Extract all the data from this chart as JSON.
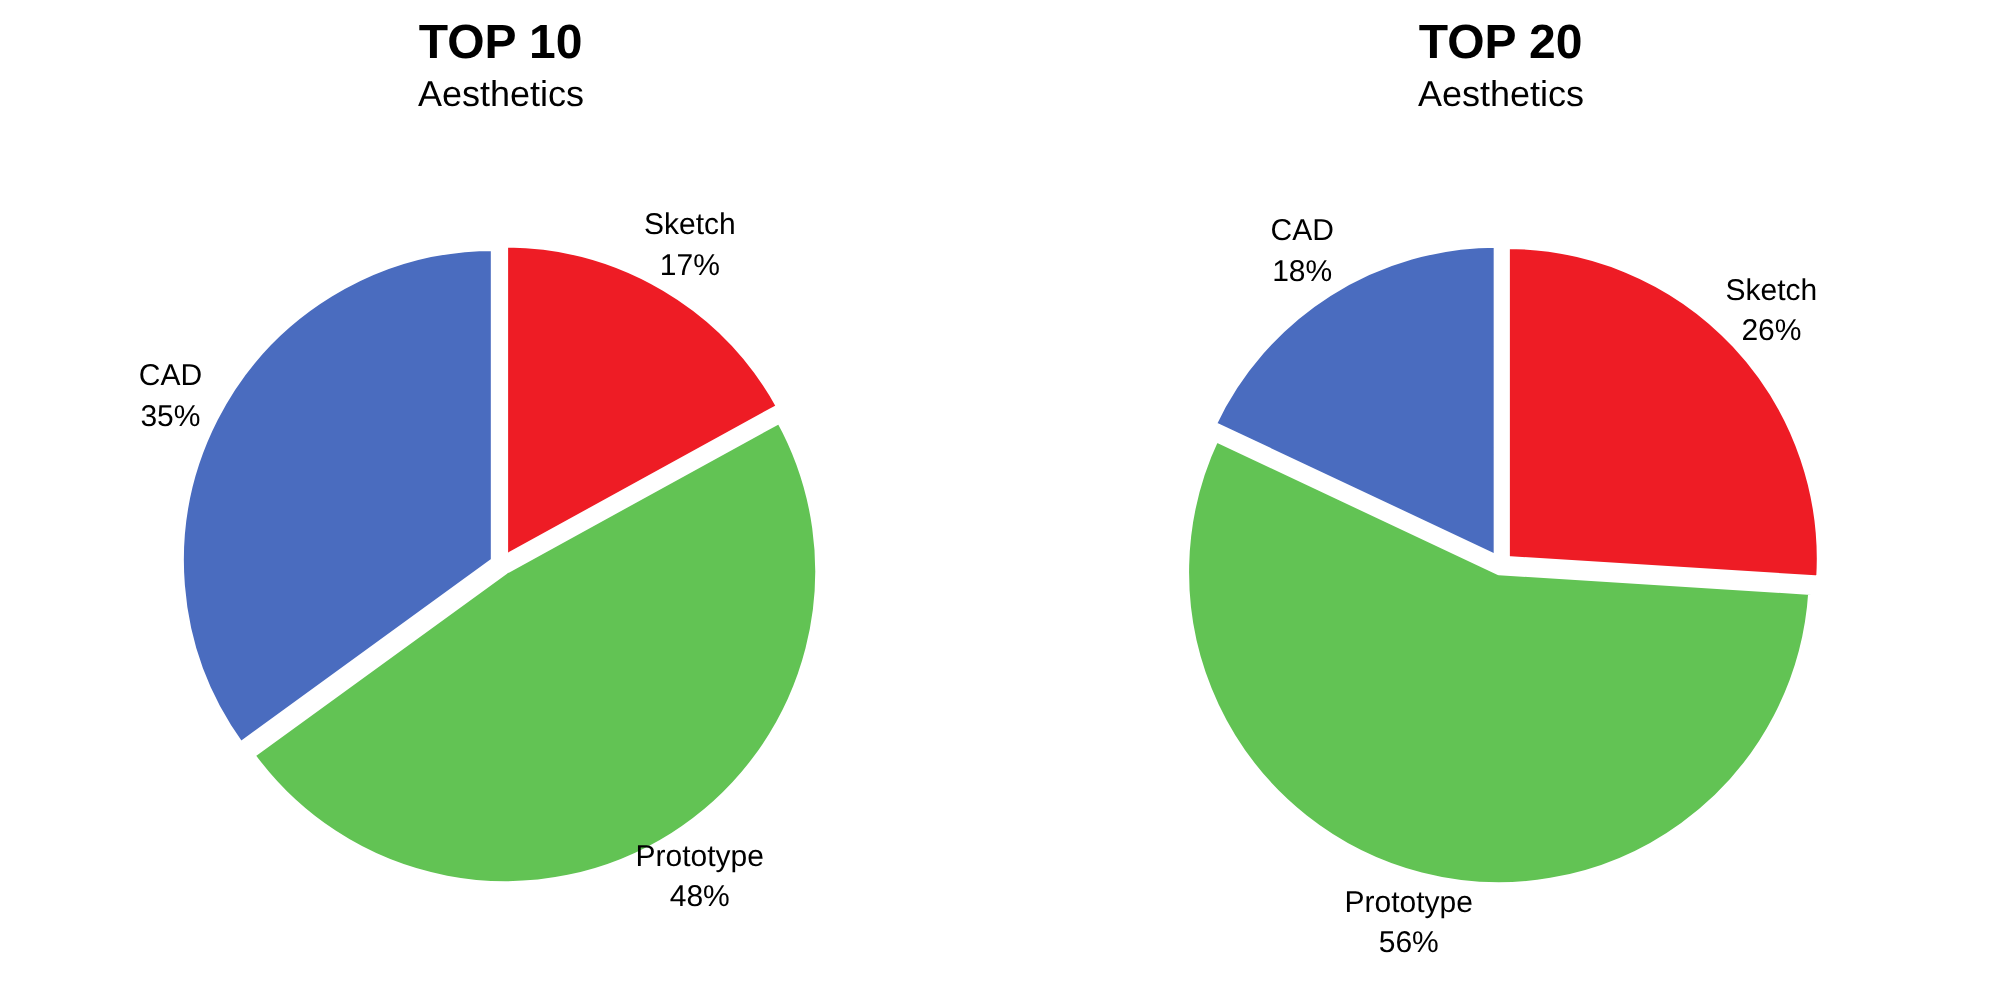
{
  "chart_data": [
    {
      "type": "pie",
      "title": "TOP 10",
      "subtitle": "Aesthetics",
      "categories": [
        "Sketch",
        "Prototype",
        "CAD"
      ],
      "values": [
        17,
        48,
        35
      ],
      "colors": [
        "#ee1c25",
        "#62c354",
        "#4a6cbf"
      ],
      "value_labels": [
        "17%",
        "48%",
        "35%"
      ]
    },
    {
      "type": "pie",
      "title": "TOP 20",
      "subtitle": "Aesthetics",
      "categories": [
        "Sketch",
        "Prototype",
        "CAD"
      ],
      "values": [
        26,
        56,
        18
      ],
      "colors": [
        "#ee1c25",
        "#62c354",
        "#4a6cbf"
      ],
      "value_labels": [
        "26%",
        "56%",
        "18%"
      ]
    }
  ]
}
